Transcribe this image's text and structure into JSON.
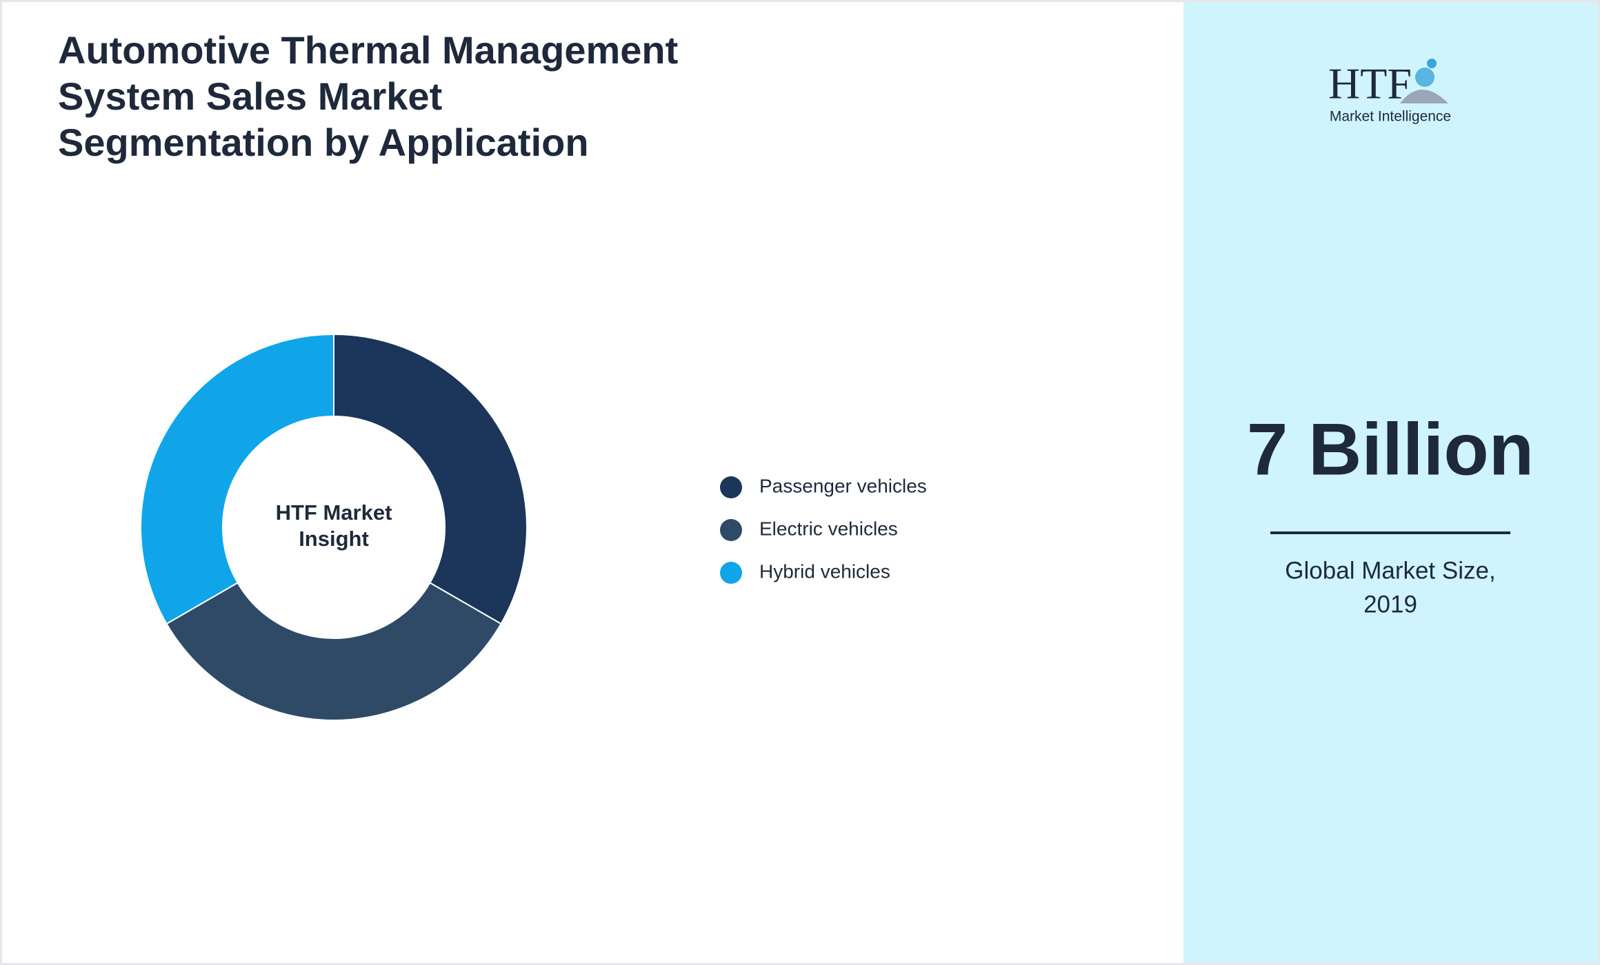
{
  "chart_data": {
    "type": "donut",
    "title": [
      "Automotive Thermal Management",
      "System Sales Market",
      "Segmentation by Application"
    ],
    "center_label": [
      "HTF Market",
      "Insight"
    ],
    "categories": [
      "Passenger vehicles",
      "Electric vehicles",
      "Hybrid vehicles"
    ],
    "values": [
      33.3,
      33.3,
      33.3
    ],
    "colors": [
      "#1b355b",
      "#2e4a66",
      "#10a5e9"
    ]
  },
  "sidebar": {
    "logo": {
      "mark": "HTF",
      "subtitle": "Market Intelligence"
    },
    "metric": "7 Billion",
    "caption": [
      "Global Market Size,",
      "2019"
    ]
  }
}
